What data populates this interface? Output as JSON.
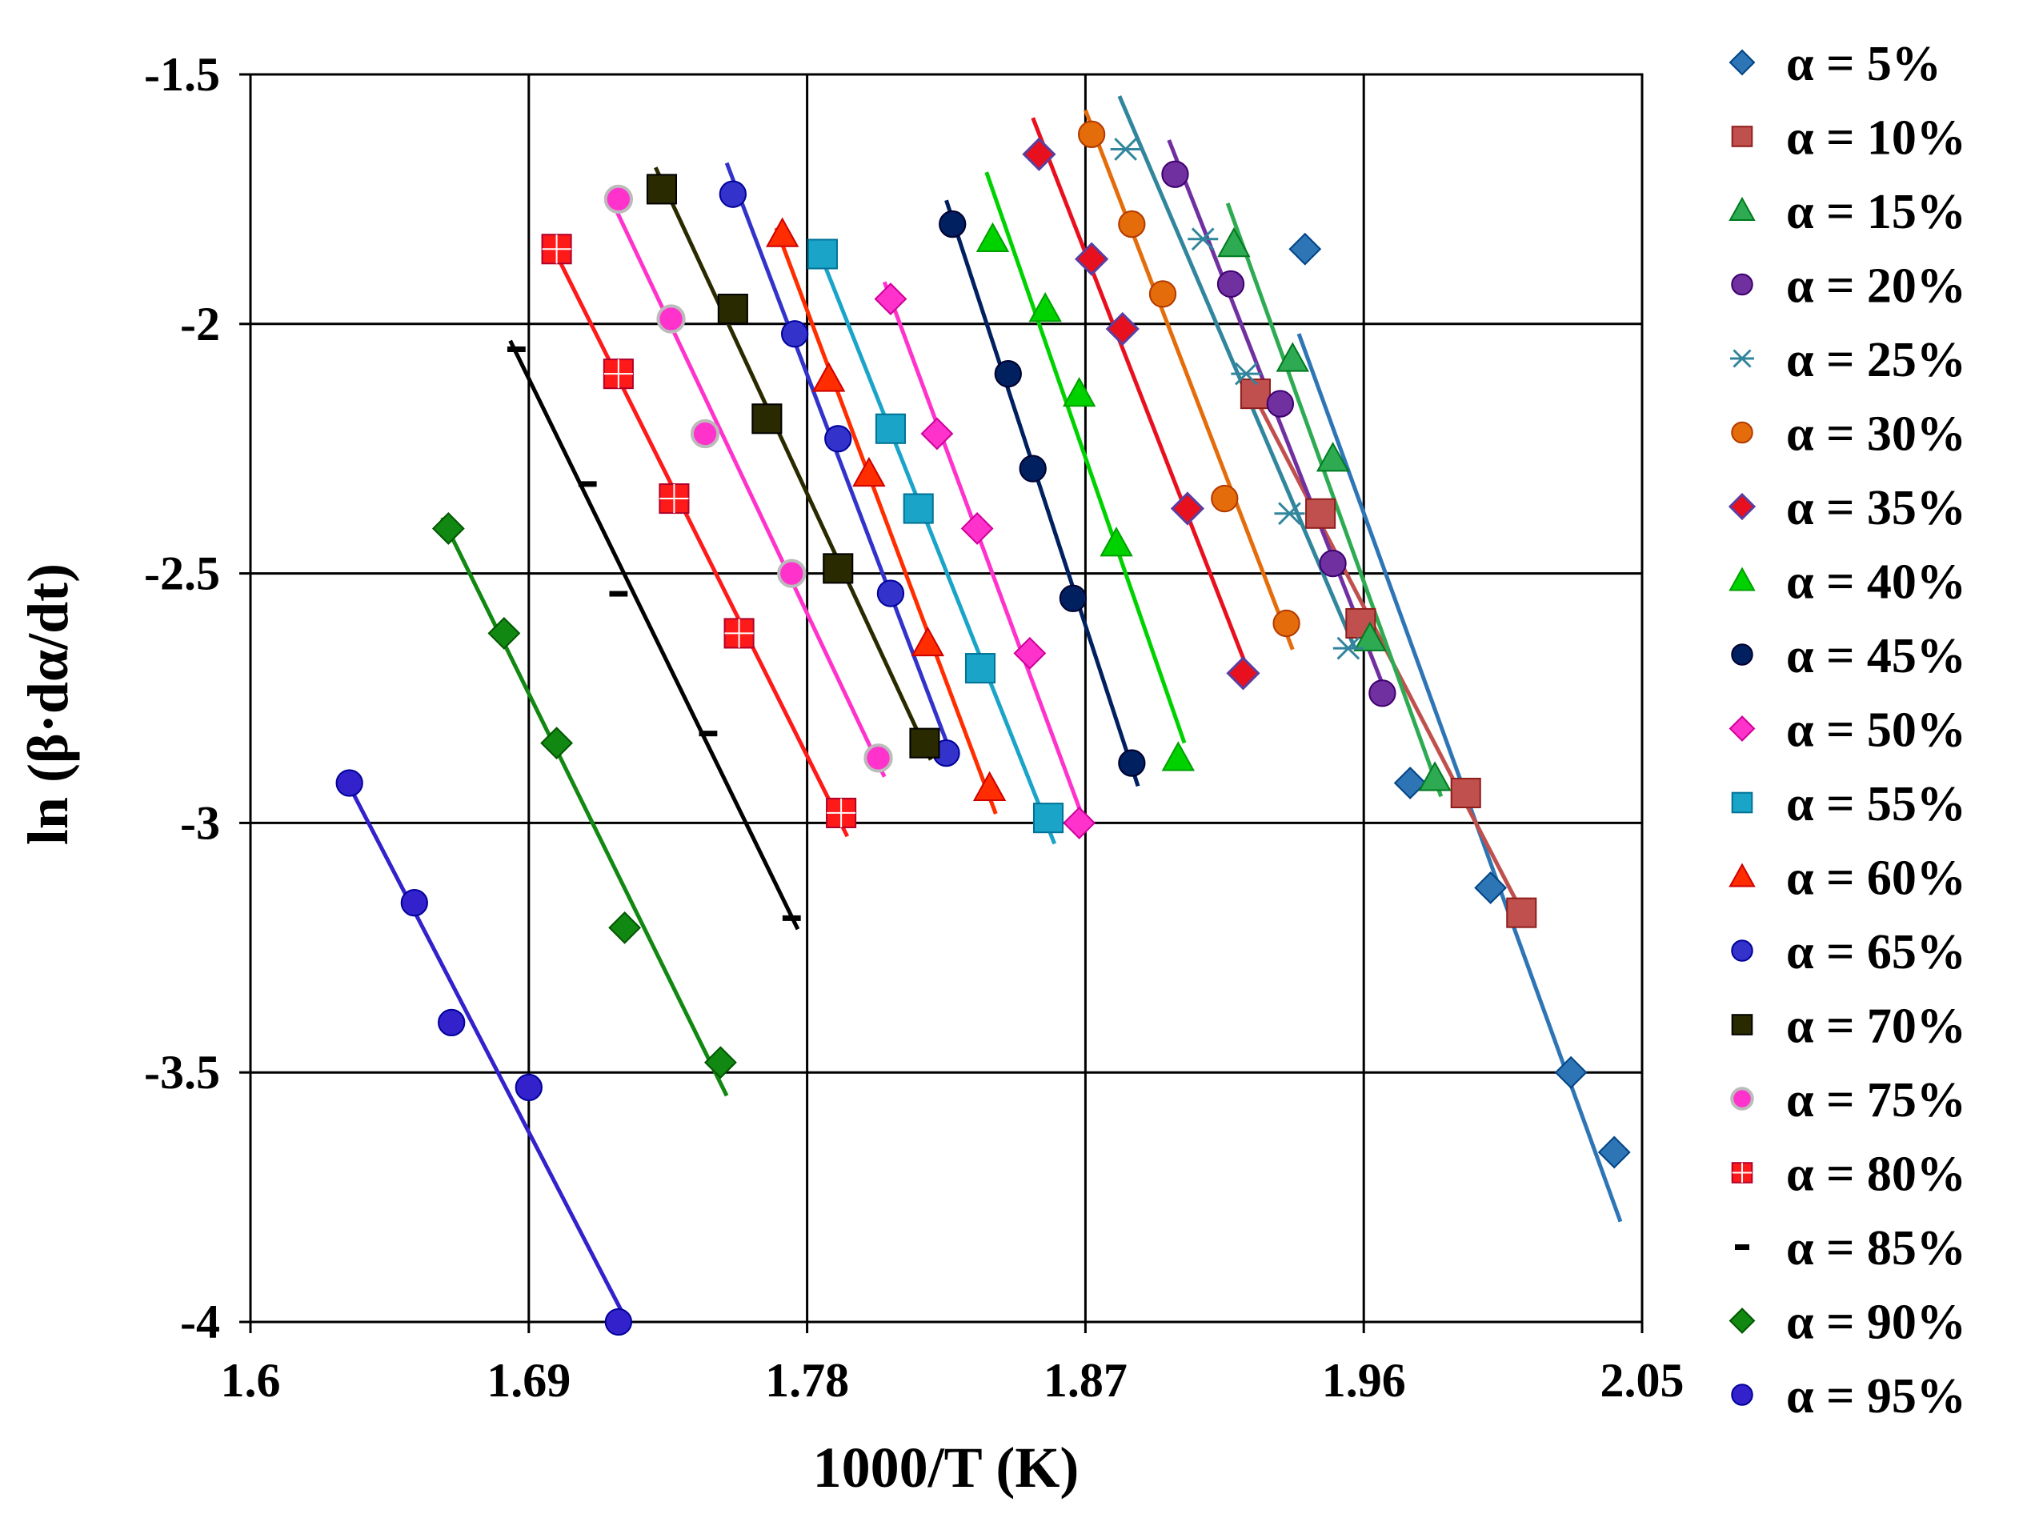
{
  "chart_data": {
    "type": "scatter",
    "title": "",
    "xlabel": "1000/T (K)",
    "ylabel": "ln (β·dα/dt)",
    "xlim": [
      1.6,
      2.05
    ],
    "ylim": [
      -4,
      -1.5
    ],
    "xticks": [
      1.6,
      1.69,
      1.78,
      1.87,
      1.96,
      2.05
    ],
    "xtick_labels": [
      "1.6",
      "1.69",
      "1.78",
      "1.87",
      "1.96",
      "2.05"
    ],
    "yticks": [
      -1.5,
      -2,
      -2.5,
      -3,
      -3.5,
      -4
    ],
    "ytick_labels": [
      "-1.5",
      "-2",
      "-2.5",
      "-3",
      "-3.5",
      "-4"
    ],
    "grid": true,
    "legend_position": "right",
    "series": [
      {
        "name": "α = 5%",
        "marker": "diamond",
        "color": "#2e75b6",
        "x": [
          1.941,
          1.975,
          2.001,
          2.027,
          2.041
        ],
        "y": [
          -1.85,
          -2.92,
          -3.13,
          -3.5,
          -3.66
        ]
      },
      {
        "name": "α = 10%",
        "marker": "square",
        "color": "#c0504d",
        "x": [
          1.925,
          1.946,
          1.959,
          1.993,
          2.011
        ],
        "y": [
          -2.14,
          -2.38,
          -2.6,
          -2.94,
          -3.18
        ]
      },
      {
        "name": "α = 15%",
        "marker": "triangle",
        "color": "#2eab52",
        "x": [
          1.918,
          1.937,
          1.95,
          1.962,
          1.983
        ],
        "y": [
          -1.84,
          -2.07,
          -2.27,
          -2.63,
          -2.91
        ]
      },
      {
        "name": "α = 20%",
        "marker": "circle",
        "color": "#7030a0",
        "x": [
          1.899,
          1.917,
          1.933,
          1.95,
          1.966
        ],
        "y": [
          -1.7,
          -1.92,
          -2.16,
          -2.48,
          -2.74
        ]
      },
      {
        "name": "α = 25%",
        "marker": "star",
        "color": "#31859c",
        "x": [
          1.883,
          1.908,
          1.922,
          1.936,
          1.955
        ],
        "y": [
          -1.65,
          -1.83,
          -2.1,
          -2.38,
          -2.65
        ]
      },
      {
        "name": "α = 30%",
        "marker": "circle",
        "color": "#e46c0a",
        "x": [
          1.872,
          1.885,
          1.895,
          1.915,
          1.935
        ],
        "y": [
          -1.62,
          -1.8,
          -1.94,
          -2.35,
          -2.6
        ]
      },
      {
        "name": "α = 35%",
        "marker": "diamond-o",
        "color": "#e8101e",
        "x": [
          1.855,
          1.872,
          1.882,
          1.903,
          1.921
        ],
        "y": [
          -1.66,
          -1.87,
          -2.01,
          -2.37,
          -2.7
        ]
      },
      {
        "name": "α = 40%",
        "marker": "triangle",
        "color": "#00d200",
        "x": [
          1.84,
          1.857,
          1.868,
          1.88,
          1.9
        ],
        "y": [
          -1.83,
          -1.97,
          -2.14,
          -2.44,
          -2.87
        ]
      },
      {
        "name": "α = 45%",
        "marker": "circle",
        "color": "#002060",
        "x": [
          1.827,
          1.845,
          1.853,
          1.866,
          1.885
        ],
        "y": [
          -1.8,
          -2.1,
          -2.29,
          -2.55,
          -2.88
        ]
      },
      {
        "name": "α = 50%",
        "marker": "diamond",
        "color": "#ff33cc",
        "x": [
          1.807,
          1.822,
          1.835,
          1.852,
          1.868
        ],
        "y": [
          -1.95,
          -2.22,
          -2.41,
          -2.66,
          -3.0
        ]
      },
      {
        "name": "α = 55%",
        "marker": "square",
        "color": "#1aa4c8",
        "x": [
          1.785,
          1.807,
          1.816,
          1.836,
          1.858
        ],
        "y": [
          -1.86,
          -2.21,
          -2.37,
          -2.69,
          -2.99
        ]
      },
      {
        "name": "α = 60%",
        "marker": "triangle",
        "color": "#ff2d00",
        "x": [
          1.772,
          1.787,
          1.8,
          1.819,
          1.839
        ],
        "y": [
          -1.82,
          -2.11,
          -2.3,
          -2.64,
          -2.93
        ]
      },
      {
        "name": "α = 65%",
        "marker": "circle",
        "color": "#3333cc",
        "x": [
          1.756,
          1.776,
          1.79,
          1.807,
          1.825
        ],
        "y": [
          -1.74,
          -2.02,
          -2.23,
          -2.54,
          -2.86
        ]
      },
      {
        "name": "α = 70%",
        "marker": "square",
        "color": "#2a2a00",
        "x": [
          1.733,
          1.756,
          1.767,
          1.79,
          1.818
        ],
        "y": [
          -1.73,
          -1.97,
          -2.19,
          -2.49,
          -2.84
        ]
      },
      {
        "name": "α = 75%",
        "marker": "circle-o",
        "color": "#ff33cc",
        "x": [
          1.719,
          1.736,
          1.747,
          1.775,
          1.803
        ],
        "y": [
          -1.75,
          -1.99,
          -2.22,
          -2.5,
          -2.87
        ]
      },
      {
        "name": "α = 80%",
        "marker": "square-x",
        "color": "#ff1a1a",
        "x": [
          1.699,
          1.719,
          1.737,
          1.758,
          1.791
        ],
        "y": [
          -1.85,
          -2.1,
          -2.35,
          -2.62,
          -2.98
        ]
      },
      {
        "name": "α = 85%",
        "marker": "dash",
        "color": "#000000",
        "x": [
          1.686,
          1.709,
          1.719,
          1.748,
          1.775
        ],
        "y": [
          -2.05,
          -2.32,
          -2.54,
          -2.82,
          -3.19
        ]
      },
      {
        "name": "α = 90%",
        "marker": "diamond",
        "color": "#118811",
        "x": [
          1.664,
          1.682,
          1.699,
          1.721,
          1.752
        ],
        "y": [
          -2.41,
          -2.62,
          -2.84,
          -3.21,
          -3.48
        ]
      },
      {
        "name": "α = 95%",
        "marker": "circle",
        "color": "#3322cc",
        "x": [
          1.632,
          1.653,
          1.665,
          1.69,
          1.719
        ],
        "y": [
          -2.92,
          -3.16,
          -3.4,
          -3.53,
          -4.0
        ]
      }
    ]
  }
}
